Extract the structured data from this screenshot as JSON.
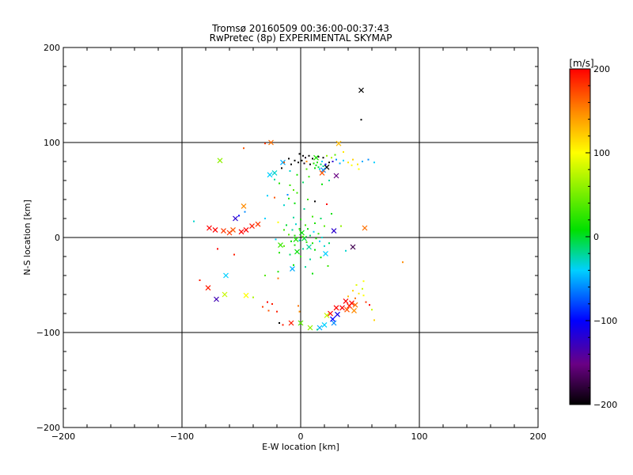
{
  "chart_data": {
    "type": "scatter",
    "title": "Tromsø 20160509 00:36:00-00:37:43",
    "subtitle": "RwPretec (8p) EXPERIMENTAL SKYMAP",
    "xlabel": "E-W location [km]",
    "ylabel": "N-S location [km]",
    "xlim": [
      -200,
      200
    ],
    "ylim": [
      -200,
      200
    ],
    "xticks": [
      -200,
      -100,
      0,
      100,
      200
    ],
    "yticks": [
      -200,
      -100,
      0,
      100,
      200
    ],
    "grid": true,
    "colorbar": {
      "label": "[m/s]",
      "min": -200,
      "max": 200,
      "ticks": [
        200,
        100,
        0,
        -100,
        -200
      ],
      "colormap": "rainbow (black → purple → blue → cyan → green → yellow → red)",
      "position": "right"
    },
    "series": [
      {
        "marker": "x",
        "points": [
          {
            "x": 51,
            "y": 155,
            "v": -200
          },
          {
            "x": -25,
            "y": 100,
            "v": 160
          },
          {
            "x": 32,
            "y": 99,
            "v": 130
          },
          {
            "x": 13,
            "y": 84,
            "v": 20
          },
          {
            "x": -68,
            "y": 81,
            "v": 60
          },
          {
            "x": -15,
            "y": 79,
            "v": -50
          },
          {
            "x": 22,
            "y": 74,
            "v": -200
          },
          {
            "x": 19,
            "y": 71,
            "v": -60
          },
          {
            "x": -26,
            "y": 66,
            "v": -40
          },
          {
            "x": -22,
            "y": 68,
            "v": -30
          },
          {
            "x": 30,
            "y": 65,
            "v": -150
          },
          {
            "x": 18,
            "y": 68,
            "v": 170
          },
          {
            "x": -48,
            "y": 33,
            "v": 150
          },
          {
            "x": -55,
            "y": 20,
            "v": -120
          },
          {
            "x": -77,
            "y": 10,
            "v": 200
          },
          {
            "x": -72,
            "y": 8,
            "v": 200
          },
          {
            "x": -65,
            "y": 7,
            "v": 180
          },
          {
            "x": -60,
            "y": 5,
            "v": 180
          },
          {
            "x": -57,
            "y": 8,
            "v": 170
          },
          {
            "x": -50,
            "y": 6,
            "v": 200
          },
          {
            "x": -46,
            "y": 8,
            "v": 200
          },
          {
            "x": -41,
            "y": 12,
            "v": 190
          },
          {
            "x": -36,
            "y": 14,
            "v": 180
          },
          {
            "x": 54,
            "y": 10,
            "v": 160
          },
          {
            "x": 28,
            "y": 7,
            "v": -120
          },
          {
            "x": 1,
            "y": 5,
            "v": 10
          },
          {
            "x": 3,
            "y": -1,
            "v": 0
          },
          {
            "x": -4,
            "y": -2,
            "v": 20
          },
          {
            "x": -17,
            "y": -8,
            "v": 30
          },
          {
            "x": 7,
            "y": -10,
            "v": -20
          },
          {
            "x": -3,
            "y": -15,
            "v": 10
          },
          {
            "x": 21,
            "y": -17,
            "v": -40
          },
          {
            "x": 44,
            "y": -10,
            "v": -170
          },
          {
            "x": -7,
            "y": -33,
            "v": -50
          },
          {
            "x": -63,
            "y": -40,
            "v": -40
          },
          {
            "x": -78,
            "y": -53,
            "v": 190
          },
          {
            "x": -64,
            "y": -60,
            "v": 80
          },
          {
            "x": -46,
            "y": -61,
            "v": 100
          },
          {
            "x": -71,
            "y": -65,
            "v": -130
          },
          {
            "x": 38,
            "y": -67,
            "v": 200
          },
          {
            "x": 43,
            "y": -69,
            "v": 200
          },
          {
            "x": 41,
            "y": -72,
            "v": 190
          },
          {
            "x": 46,
            "y": -71,
            "v": 160
          },
          {
            "x": 35,
            "y": -74,
            "v": 200
          },
          {
            "x": 39,
            "y": -76,
            "v": 170
          },
          {
            "x": 30,
            "y": -74,
            "v": 200
          },
          {
            "x": 45,
            "y": -77,
            "v": 150
          },
          {
            "x": 25,
            "y": -80,
            "v": 200
          },
          {
            "x": 22,
            "y": -82,
            "v": 80
          },
          {
            "x": 31,
            "y": -81,
            "v": -110
          },
          {
            "x": 27,
            "y": -86,
            "v": -100
          },
          {
            "x": 28,
            "y": -90,
            "v": -60
          },
          {
            "x": 20,
            "y": -92,
            "v": -40
          },
          {
            "x": 16,
            "y": -95,
            "v": -50
          },
          {
            "x": -8,
            "y": -90,
            "v": 190
          },
          {
            "x": 0,
            "y": -90,
            "v": 40
          },
          {
            "x": 8,
            "y": -95,
            "v": 60
          }
        ]
      },
      {
        "marker": "dot",
        "points": [
          {
            "x": 51,
            "y": 124,
            "v": -200
          },
          {
            "x": -30,
            "y": 99,
            "v": 180
          },
          {
            "x": -48,
            "y": 94,
            "v": 170
          },
          {
            "x": 36,
            "y": 90,
            "v": 110
          },
          {
            "x": -1,
            "y": 88,
            "v": -200
          },
          {
            "x": 2,
            "y": 86,
            "v": -200
          },
          {
            "x": 4,
            "y": 84,
            "v": -190
          },
          {
            "x": 7,
            "y": 86,
            "v": -200
          },
          {
            "x": 10,
            "y": 83,
            "v": -200
          },
          {
            "x": 15,
            "y": 85,
            "v": -180
          },
          {
            "x": 19,
            "y": 84,
            "v": -200
          },
          {
            "x": 22,
            "y": 86,
            "v": 60
          },
          {
            "x": 26,
            "y": 84,
            "v": 70
          },
          {
            "x": 29,
            "y": 87,
            "v": 40
          },
          {
            "x": -5,
            "y": 81,
            "v": -200
          },
          {
            "x": -2,
            "y": 79,
            "v": -200
          },
          {
            "x": 1,
            "y": 81,
            "v": -200
          },
          {
            "x": 3,
            "y": 78,
            "v": -190
          },
          {
            "x": 5,
            "y": 80,
            "v": 150
          },
          {
            "x": 8,
            "y": 77,
            "v": -200
          },
          {
            "x": 11,
            "y": 78,
            "v": 20
          },
          {
            "x": 13,
            "y": 76,
            "v": 10
          },
          {
            "x": 15,
            "y": 74,
            "v": 0
          },
          {
            "x": 17,
            "y": 77,
            "v": -10
          },
          {
            "x": 19,
            "y": 75,
            "v": -20
          },
          {
            "x": 14,
            "y": 79,
            "v": 20
          },
          {
            "x": 16,
            "y": 72,
            "v": -30
          },
          {
            "x": 12,
            "y": 73,
            "v": 10
          },
          {
            "x": 18,
            "y": 80,
            "v": -40
          },
          {
            "x": 21,
            "y": 77,
            "v": -100
          },
          {
            "x": 24,
            "y": 79,
            "v": -200
          },
          {
            "x": 27,
            "y": 80,
            "v": -120
          },
          {
            "x": 30,
            "y": 82,
            "v": -60
          },
          {
            "x": 33,
            "y": 78,
            "v": -50
          },
          {
            "x": 36,
            "y": 81,
            "v": -40
          },
          {
            "x": 40,
            "y": 79,
            "v": 110
          },
          {
            "x": 44,
            "y": 82,
            "v": 120
          },
          {
            "x": 48,
            "y": 77,
            "v": 110
          },
          {
            "x": 52,
            "y": 80,
            "v": -50
          },
          {
            "x": 57,
            "y": 82,
            "v": -60
          },
          {
            "x": 62,
            "y": 79,
            "v": -40
          },
          {
            "x": 43,
            "y": 76,
            "v": 100
          },
          {
            "x": 49,
            "y": 72,
            "v": 100
          },
          {
            "x": -10,
            "y": 83,
            "v": -200
          },
          {
            "x": -14,
            "y": 79,
            "v": 170
          },
          {
            "x": -8,
            "y": 77,
            "v": -200
          },
          {
            "x": -16,
            "y": 73,
            "v": -200
          },
          {
            "x": 5,
            "y": 72,
            "v": 40
          },
          {
            "x": -9,
            "y": 70,
            "v": -30
          },
          {
            "x": -3,
            "y": 66,
            "v": 20
          },
          {
            "x": 7,
            "y": 64,
            "v": 30
          },
          {
            "x": -22,
            "y": 61,
            "v": -20
          },
          {
            "x": -18,
            "y": 57,
            "v": 20
          },
          {
            "x": -9,
            "y": 55,
            "v": 30
          },
          {
            "x": 2,
            "y": 58,
            "v": -10
          },
          {
            "x": 18,
            "y": 56,
            "v": 10
          },
          {
            "x": 24,
            "y": 60,
            "v": -20
          },
          {
            "x": -6,
            "y": 50,
            "v": 40
          },
          {
            "x": -3,
            "y": 47,
            "v": 30
          },
          {
            "x": -11,
            "y": 45,
            "v": -60
          },
          {
            "x": -22,
            "y": 42,
            "v": 170
          },
          {
            "x": -28,
            "y": 44,
            "v": -40
          },
          {
            "x": -10,
            "y": 41,
            "v": 20
          },
          {
            "x": -5,
            "y": 36,
            "v": 10
          },
          {
            "x": 6,
            "y": 40,
            "v": 30
          },
          {
            "x": 12,
            "y": 38,
            "v": -200
          },
          {
            "x": 22,
            "y": 35,
            "v": 200
          },
          {
            "x": 3,
            "y": 30,
            "v": -20
          },
          {
            "x": -14,
            "y": 34,
            "v": -30
          },
          {
            "x": -47,
            "y": 27,
            "v": -60
          },
          {
            "x": -30,
            "y": 20,
            "v": -40
          },
          {
            "x": -52,
            "y": 23,
            "v": -100
          },
          {
            "x": -90,
            "y": 17,
            "v": -30
          },
          {
            "x": -19,
            "y": 16,
            "v": 100
          },
          {
            "x": -6,
            "y": 21,
            "v": -20
          },
          {
            "x": 0,
            "y": 19,
            "v": 20
          },
          {
            "x": 10,
            "y": 22,
            "v": 30
          },
          {
            "x": 17,
            "y": 20,
            "v": -10
          },
          {
            "x": 26,
            "y": 25,
            "v": 10
          },
          {
            "x": -12,
            "y": 13,
            "v": 0
          },
          {
            "x": -4,
            "y": 14,
            "v": -30
          },
          {
            "x": 4,
            "y": 13,
            "v": 30
          },
          {
            "x": 12,
            "y": 15,
            "v": 20
          },
          {
            "x": 20,
            "y": 12,
            "v": 40
          },
          {
            "x": 34,
            "y": 12,
            "v": 60
          },
          {
            "x": -14,
            "y": 8,
            "v": 30
          },
          {
            "x": -7,
            "y": 8,
            "v": -20
          },
          {
            "x": -1,
            "y": 9,
            "v": 20
          },
          {
            "x": 6,
            "y": 9,
            "v": 10
          },
          {
            "x": 11,
            "y": 6,
            "v": -40
          },
          {
            "x": 15,
            "y": 4,
            "v": 30
          },
          {
            "x": -10,
            "y": 3,
            "v": 40
          },
          {
            "x": -5,
            "y": 2,
            "v": 20
          },
          {
            "x": 2,
            "y": 1,
            "v": 50
          },
          {
            "x": 8,
            "y": 2,
            "v": -10
          },
          {
            "x": 13,
            "y": -1,
            "v": 20
          },
          {
            "x": 18,
            "y": 0,
            "v": -30
          },
          {
            "x": -21,
            "y": -2,
            "v": -40
          },
          {
            "x": -8,
            "y": -4,
            "v": 10
          },
          {
            "x": -1,
            "y": -3,
            "v": -30
          },
          {
            "x": 5,
            "y": -5,
            "v": 30
          },
          {
            "x": 10,
            "y": -6,
            "v": 20
          },
          {
            "x": 16,
            "y": -4,
            "v": -40
          },
          {
            "x": 24,
            "y": -6,
            "v": -10
          },
          {
            "x": -14,
            "y": -9,
            "v": 40
          },
          {
            "x": -5,
            "y": -8,
            "v": 20
          },
          {
            "x": 2,
            "y": -12,
            "v": -20
          },
          {
            "x": 12,
            "y": -13,
            "v": 10
          },
          {
            "x": 20,
            "y": -9,
            "v": -30
          },
          {
            "x": -18,
            "y": -16,
            "v": 20
          },
          {
            "x": -9,
            "y": -18,
            "v": -10
          },
          {
            "x": 0,
            "y": -20,
            "v": 30
          },
          {
            "x": 8,
            "y": -23,
            "v": -20
          },
          {
            "x": 17,
            "y": -21,
            "v": 10
          },
          {
            "x": 38,
            "y": -14,
            "v": -30
          },
          {
            "x": -70,
            "y": -12,
            "v": 200
          },
          {
            "x": -56,
            "y": -18,
            "v": 190
          },
          {
            "x": 86,
            "y": -26,
            "v": 150
          },
          {
            "x": -6,
            "y": -29,
            "v": 10
          },
          {
            "x": 4,
            "y": -31,
            "v": -20
          },
          {
            "x": 23,
            "y": -30,
            "v": 30
          },
          {
            "x": -19,
            "y": -36,
            "v": 20
          },
          {
            "x": 10,
            "y": -38,
            "v": 10
          },
          {
            "x": -30,
            "y": -40,
            "v": 40
          },
          {
            "x": -19,
            "y": -43,
            "v": 160
          },
          {
            "x": -85,
            "y": -45,
            "v": 190
          },
          {
            "x": 53,
            "y": -46,
            "v": 100
          },
          {
            "x": 47,
            "y": -50,
            "v": 90
          },
          {
            "x": 52,
            "y": -54,
            "v": 80
          },
          {
            "x": 44,
            "y": -56,
            "v": 120
          },
          {
            "x": 49,
            "y": -59,
            "v": 110
          },
          {
            "x": 53,
            "y": -61,
            "v": 100
          },
          {
            "x": 40,
            "y": -62,
            "v": 130
          },
          {
            "x": 46,
            "y": -64,
            "v": 160
          },
          {
            "x": -40,
            "y": -63,
            "v": 70
          },
          {
            "x": -28,
            "y": -68,
            "v": 200
          },
          {
            "x": -24,
            "y": -70,
            "v": 190
          },
          {
            "x": -32,
            "y": -73,
            "v": 180
          },
          {
            "x": -2,
            "y": -72,
            "v": 160
          },
          {
            "x": -1,
            "y": -78,
            "v": 150
          },
          {
            "x": 55,
            "y": -68,
            "v": 180
          },
          {
            "x": 58,
            "y": -71,
            "v": 200
          },
          {
            "x": 60,
            "y": -76,
            "v": 80
          },
          {
            "x": -20,
            "y": -78,
            "v": 190
          },
          {
            "x": -27,
            "y": -77,
            "v": 170
          },
          {
            "x": 62,
            "y": -87,
            "v": 120
          },
          {
            "x": -18,
            "y": -90,
            "v": -200
          },
          {
            "x": -15,
            "y": -92,
            "v": 190
          },
          {
            "x": 14,
            "y": -97,
            "v": -20
          }
        ]
      }
    ]
  }
}
